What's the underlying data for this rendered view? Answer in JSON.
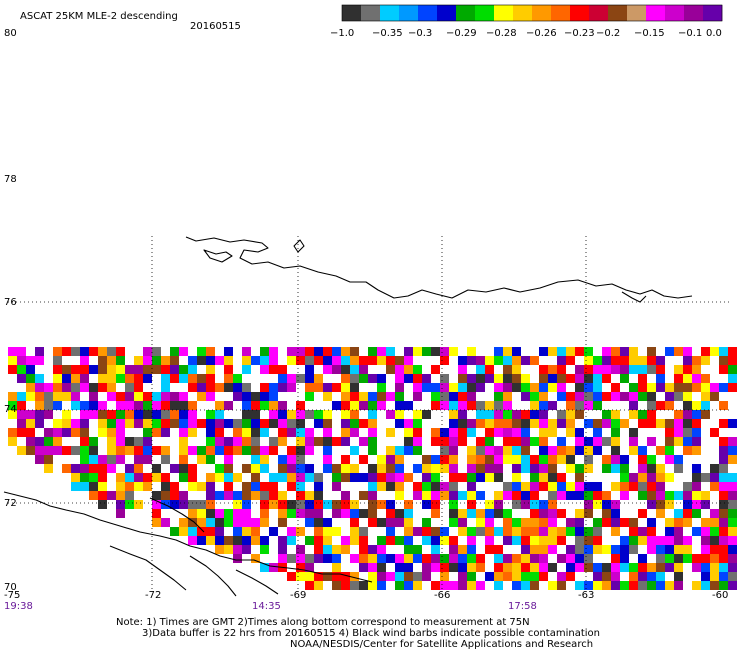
{
  "header": {
    "title": "ASCAT 25KM MLE-2 descending",
    "date": "20160515"
  },
  "colorbar": {
    "labels": [
      "−1.0",
      "−0.35",
      "−0.3",
      "−0.29",
      "−0.28",
      "−0.26",
      "−0.23",
      "−0.2",
      "−0.15",
      "−0.1",
      "0.0"
    ],
    "colors": [
      "#303030",
      "#707070",
      "#00ccff",
      "#0099ff",
      "#0044ff",
      "#0000cc",
      "#00aa00",
      "#00dd00",
      "#ffff00",
      "#ffcc00",
      "#ff9900",
      "#ff6600",
      "#ff0000",
      "#cc0033",
      "#8b4513",
      "#cc9966",
      "#ff00ff",
      "#cc00cc",
      "#990099",
      "#6600aa"
    ]
  },
  "axes": {
    "lat_labels": [
      "80",
      "78",
      "76",
      "74",
      "72",
      "70"
    ],
    "lon_labels": [
      "-75",
      "-72",
      "-69",
      "-66",
      "-63",
      "-60"
    ],
    "lat_values": [
      80,
      78,
      76,
      74,
      72,
      70
    ],
    "lon_values": [
      -75,
      -72,
      -69,
      -66,
      -63,
      -60
    ]
  },
  "times": [
    "19:38",
    "14:35",
    "17:58"
  ],
  "notes": {
    "line1": "Note: 1) Times are GMT 2)Times along bottom correspond to measurement at 75N",
    "line2": "3)Data buffer is 22 hrs from 20160515 4) Black wind barbs indicate possible contamination",
    "line3": "NOAA/NESDIS/Center for Satellite Applications and Research"
  }
}
